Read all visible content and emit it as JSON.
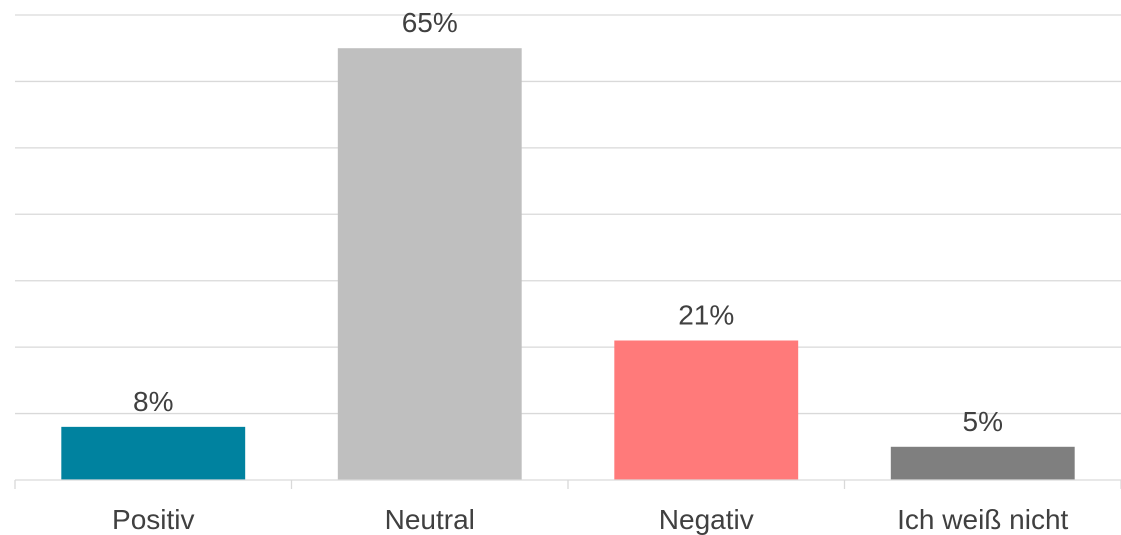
{
  "chart_data": {
    "type": "bar",
    "categories": [
      "Positiv",
      "Neutral",
      "Negativ",
      "Ich weiß nicht"
    ],
    "values": [
      8,
      65,
      21,
      5
    ],
    "value_labels": [
      "8%",
      "65%",
      "21%",
      "5%"
    ],
    "colors": [
      "#00829f",
      "#bfbfbf",
      "#ff7a7a",
      "#7f7f7f"
    ],
    "ylim": [
      0,
      70
    ],
    "grid": true,
    "legend": "none",
    "title": "",
    "xlabel": "",
    "ylabel": ""
  }
}
